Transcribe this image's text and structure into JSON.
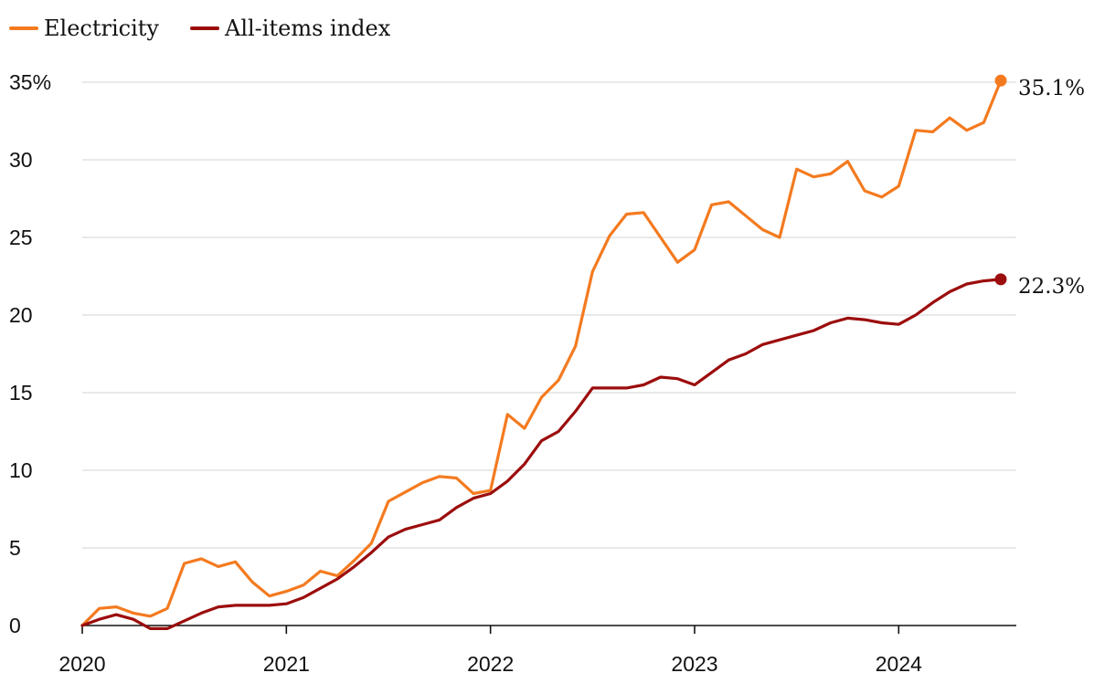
{
  "chart_data": {
    "type": "line",
    "title": "",
    "xlabel": "",
    "ylabel": "",
    "ylim": [
      0,
      35
    ],
    "y_ticks": [
      0,
      5,
      10,
      15,
      20,
      25,
      30,
      35
    ],
    "y_tick_labels": [
      "0",
      "5",
      "10",
      "15",
      "20",
      "25",
      "30",
      "35%"
    ],
    "x_ticks": [
      "2020",
      "2021",
      "2022",
      "2023",
      "2024"
    ],
    "xlim_months": [
      0,
      54
    ],
    "grid": true,
    "legend_position": "top-left",
    "series": [
      {
        "name": "Electricity",
        "color": "#f47a1f",
        "end_label": "35.1%",
        "values": [
          0,
          1.1,
          1.2,
          0.8,
          0.6,
          1.1,
          4.0,
          4.3,
          3.8,
          4.1,
          2.8,
          1.9,
          2.2,
          2.6,
          3.5,
          3.2,
          4.2,
          5.3,
          8.0,
          8.6,
          9.2,
          9.6,
          9.5,
          8.5,
          8.7,
          13.6,
          12.7,
          14.7,
          15.8,
          18.0,
          22.8,
          25.1,
          26.5,
          26.6,
          25.0,
          23.4,
          24.2,
          27.1,
          27.3,
          26.4,
          25.5,
          25.0,
          29.4,
          28.9,
          29.1,
          29.9,
          28.0,
          27.6,
          28.3,
          31.9,
          31.8,
          32.7,
          31.9,
          32.4,
          35.1
        ]
      },
      {
        "name": "All-items index",
        "color": "#9c0d0d",
        "end_label": "22.3%",
        "values": [
          0,
          0.4,
          0.7,
          0.4,
          -0.2,
          -0.2,
          0.3,
          0.8,
          1.2,
          1.3,
          1.3,
          1.3,
          1.4,
          1.8,
          2.4,
          3.0,
          3.8,
          4.7,
          5.7,
          6.2,
          6.5,
          6.8,
          7.6,
          8.2,
          8.5,
          9.3,
          10.4,
          11.9,
          12.5,
          13.8,
          15.3,
          15.3,
          15.3,
          15.5,
          16.0,
          15.9,
          15.5,
          16.3,
          17.1,
          17.5,
          18.1,
          18.4,
          18.7,
          19.0,
          19.5,
          19.8,
          19.7,
          19.5,
          19.4,
          20.0,
          20.8,
          21.5,
          22.0,
          22.2,
          22.3
        ]
      }
    ]
  }
}
